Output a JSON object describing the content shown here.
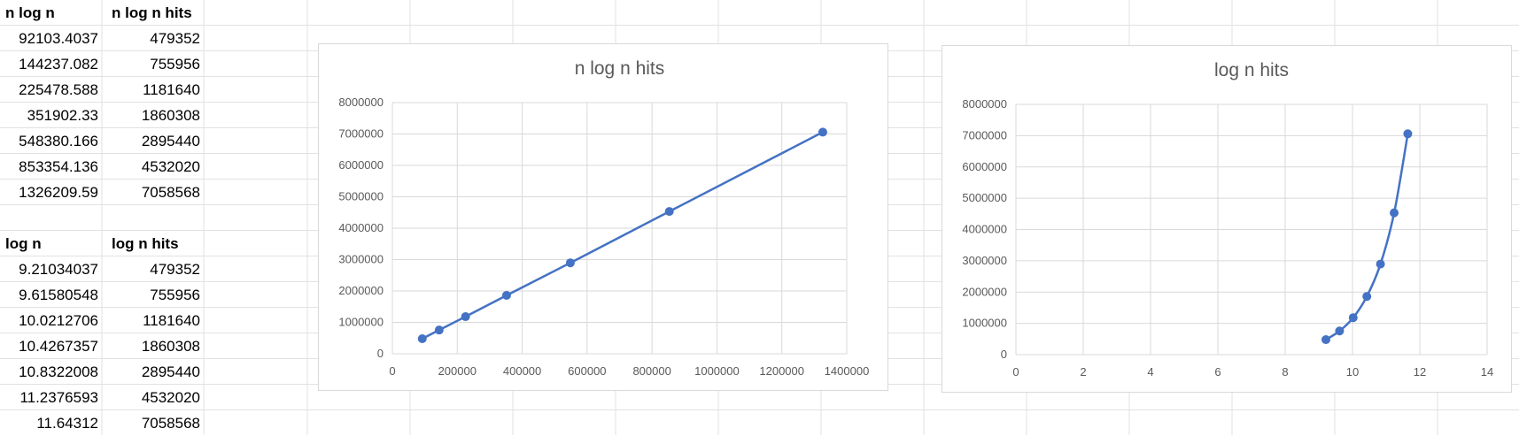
{
  "sheet": {
    "table1": {
      "headers": [
        "n log n",
        "n log n hits"
      ],
      "rows": [
        [
          "92103.4037",
          "479352"
        ],
        [
          "144237.082",
          "755956"
        ],
        [
          "225478.588",
          "1181640"
        ],
        [
          "351902.33",
          "1860308"
        ],
        [
          "548380.166",
          "2895440"
        ],
        [
          "853354.136",
          "4532020"
        ],
        [
          "1326209.59",
          "7058568"
        ]
      ]
    },
    "table2": {
      "headers": [
        "log n",
        "log n hits"
      ],
      "rows": [
        [
          "9.21034037",
          "479352"
        ],
        [
          "9.61580548",
          "755956"
        ],
        [
          "10.0212706",
          "1181640"
        ],
        [
          "10.4267357",
          "1860308"
        ],
        [
          "10.8322008",
          "2895440"
        ],
        [
          "11.2376593",
          "4532020"
        ],
        [
          "11.64312",
          "7058568"
        ]
      ]
    }
  },
  "colors": {
    "series": "#4472c4",
    "gridline": "#d9d9d9",
    "sheet_grid": "#e2e2e2"
  },
  "chart_data": [
    {
      "type": "line",
      "title": "n log n hits",
      "xlabel": "",
      "ylabel": "",
      "x": [
        92103.4037,
        144237.082,
        225478.588,
        351902.33,
        548380.166,
        853354.136,
        1326209.59
      ],
      "series": [
        {
          "values": [
            479352,
            755956,
            1181640,
            1860308,
            2895440,
            4532020,
            7058568
          ]
        }
      ],
      "xlim": [
        0,
        1400000
      ],
      "ylim": [
        0,
        8000000
      ],
      "xticks": [
        "0",
        "200000",
        "400000",
        "600000",
        "800000",
        "1000000",
        "1200000",
        "1400000"
      ],
      "yticks": [
        "0",
        "1000000",
        "2000000",
        "3000000",
        "4000000",
        "5000000",
        "6000000",
        "7000000",
        "8000000"
      ],
      "grid": true,
      "markers": true,
      "smooth": false
    },
    {
      "type": "line",
      "title": "log n hits",
      "xlabel": "",
      "ylabel": "",
      "x": [
        9.21034037,
        9.61580548,
        10.0212706,
        10.4267357,
        10.8322008,
        11.2376593,
        11.64312
      ],
      "series": [
        {
          "values": [
            479352,
            755956,
            1181640,
            1860308,
            2895440,
            4532020,
            7058568
          ]
        }
      ],
      "xlim": [
        0,
        14
      ],
      "ylim": [
        0,
        8000000
      ],
      "xticks": [
        "0",
        "2",
        "4",
        "6",
        "8",
        "10",
        "12",
        "14"
      ],
      "yticks": [
        "0",
        "1000000",
        "2000000",
        "3000000",
        "4000000",
        "5000000",
        "6000000",
        "7000000",
        "8000000"
      ],
      "grid": true,
      "markers": true,
      "smooth": true
    }
  ]
}
